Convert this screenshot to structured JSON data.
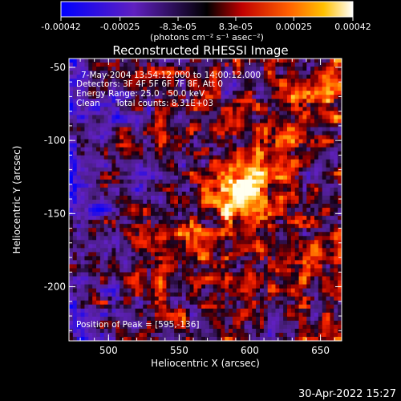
{
  "colorbar": {
    "tick_labels": [
      "-0.00042",
      "-0.00025",
      "-8.3e-05",
      "8.3e-05",
      "0.00025",
      "0.00042"
    ],
    "tick_values": [
      -0.00042,
      -0.00025,
      -8.3e-05,
      8.3e-05,
      0.00025,
      0.00042
    ],
    "range": [
      -0.00042,
      0.00042
    ],
    "units_label": "(photons cm⁻² s⁻¹ asec⁻²)"
  },
  "chart_data": {
    "type": "heatmap",
    "title": "Reconstructed RHESSI Image",
    "xlabel": "Heliocentric X (arcsec)",
    "ylabel": "Heliocentric Y (arcsec)",
    "xlim": [
      472,
      665
    ],
    "ylim": [
      -237,
      -44
    ],
    "x_ticks": [
      500,
      550,
      600,
      650
    ],
    "y_ticks": [
      -50,
      -100,
      -150,
      -200
    ],
    "peak": [
      595,
      -136
    ],
    "colors": {
      "low": "#0000ff",
      "neutral": "#000000",
      "mid": "#ff2000",
      "high": "#ffffff"
    }
  },
  "annotations": {
    "time_range": "7-May-2004 13:54:12.000 to 14:00:12.000",
    "detectors": "Detectors: 3F 4F 5F 6F 7F 8F, Att 0",
    "energy_range": "Energy Range: 25.0 - 50.0 keV",
    "clean": "Clean",
    "total_counts": "Total counts: 8.31E+03",
    "peak_position": "Position of Peak = [595,-136]"
  },
  "footer": {
    "timestamp": "30-Apr-2022 15:27"
  }
}
